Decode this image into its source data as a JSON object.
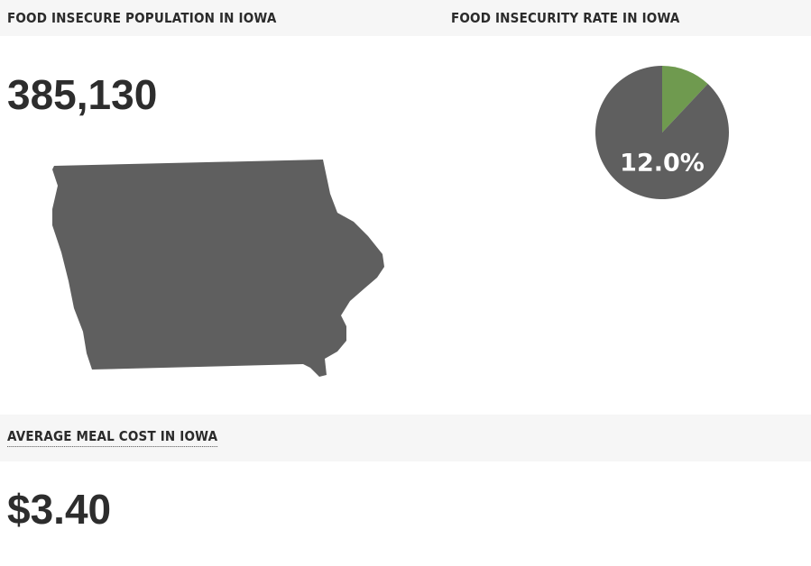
{
  "population_panel": {
    "title": "FOOD INSECURE POPULATION IN IOWA",
    "value": "385,130"
  },
  "rate_panel": {
    "title": "FOOD INSECURITY RATE IN IOWA",
    "chart_data": {
      "type": "pie",
      "values": [
        12,
        88
      ],
      "value_labels": [
        "12.0%",
        null
      ],
      "colors": [
        "#6f9a4f",
        "#5f5f5f"
      ]
    }
  },
  "meal_panel": {
    "title": "AVERAGE MEAL COST IN IOWA",
    "value": "$3.40"
  }
}
